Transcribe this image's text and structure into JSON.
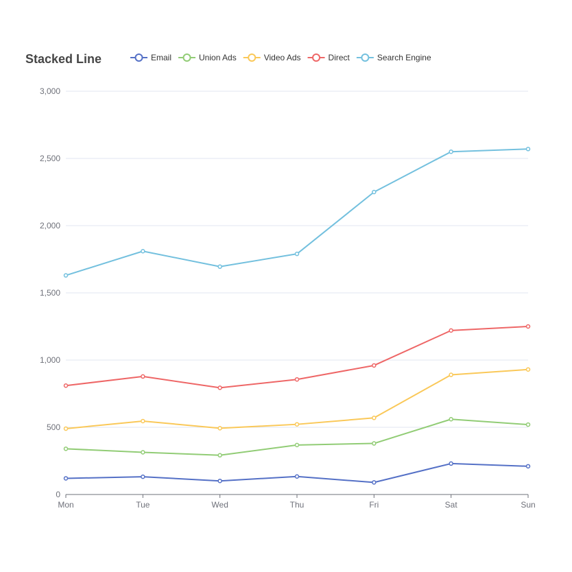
{
  "chart_data": {
    "type": "line",
    "title": "Stacked Line",
    "xlabel": "",
    "ylabel": "",
    "categories": [
      "Mon",
      "Tue",
      "Wed",
      "Thu",
      "Fri",
      "Sat",
      "Sun"
    ],
    "ylim": [
      0,
      3000
    ],
    "yticks": [
      "0",
      "500",
      "1,000",
      "1,500",
      "2,000",
      "2,500",
      "3,000"
    ],
    "stacked": true,
    "grid": true,
    "legend_position": "top",
    "series": [
      {
        "name": "Email",
        "color": "#5470c6",
        "values": [
          120,
          132,
          101,
          134,
          90,
          230,
          210
        ]
      },
      {
        "name": "Union Ads",
        "color": "#91cc75",
        "values": [
          220,
          182,
          191,
          234,
          290,
          330,
          310
        ]
      },
      {
        "name": "Video Ads",
        "color": "#fac858",
        "values": [
          150,
          232,
          201,
          154,
          190,
          330,
          410
        ]
      },
      {
        "name": "Direct",
        "color": "#ee6666",
        "values": [
          320,
          332,
          301,
          334,
          390,
          330,
          320
        ]
      },
      {
        "name": "Search Engine",
        "color": "#73c0de",
        "values": [
          820,
          932,
          901,
          934,
          1290,
          1330,
          1320
        ]
      }
    ]
  }
}
